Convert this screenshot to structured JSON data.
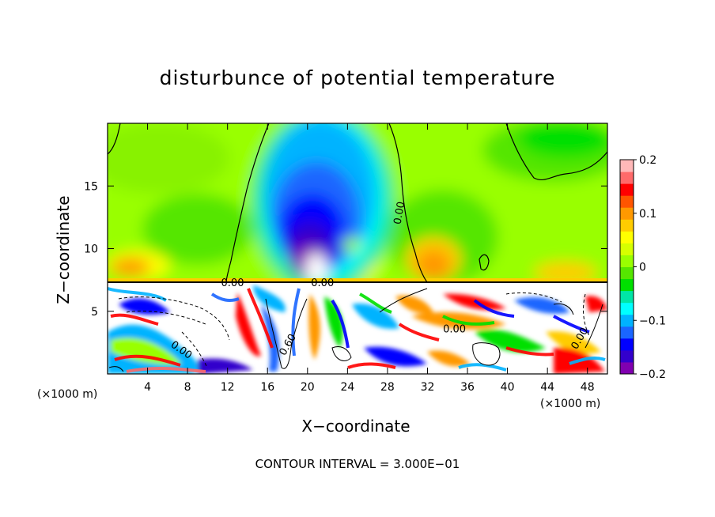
{
  "chart_data": {
    "type": "heatmap",
    "title": "disturbunce of potential temperature",
    "xlabel": "X−coordinate",
    "ylabel": "Z−coordinate",
    "x_unit_left": "(×1000 m)",
    "x_unit_right": "(×1000 m)",
    "footer": "CONTOUR INTERVAL = 3.000E−01",
    "xlim": [
      0,
      50
    ],
    "ylim": [
      0,
      20
    ],
    "x_ticks": [
      4,
      8,
      12,
      16,
      20,
      24,
      28,
      32,
      36,
      40,
      44,
      48
    ],
    "y_ticks": [
      5,
      10,
      15
    ],
    "colorbar": {
      "range": [
        -0.2,
        0.2
      ],
      "tick_values": [
        0.2,
        0.1,
        0,
        -0.1,
        -0.2
      ],
      "tick_labels": [
        "0.2",
        "0.1",
        "0",
        "−0.1",
        "−0.2"
      ],
      "colors": [
        "#8000b0",
        "#3300cc",
        "#0000ff",
        "#1a66ff",
        "#00b3ff",
        "#00ffff",
        "#00e6a6",
        "#00e000",
        "#55e600",
        "#99ff00",
        "#d6ff00",
        "#ffff00",
        "#ffcc00",
        "#ff9900",
        "#ff5500",
        "#ff0000",
        "#ff6a6a",
        "#ffb8b8"
      ]
    },
    "contour_labels": [
      {
        "text": "0.00",
        "x": 29.5,
        "y": 12.8,
        "angle": -80
      },
      {
        "text": "0.00",
        "x": 34.7,
        "y": 3.3,
        "angle": 0
      },
      {
        "text": "0.00",
        "x": 7.2,
        "y": 1.7,
        "angle": 35
      },
      {
        "text": "0.60",
        "x": 18.3,
        "y": 2.2,
        "angle": -60
      },
      {
        "text": "0.00",
        "x": 12.5,
        "y": 7.0,
        "angle": 0
      },
      {
        "text": "0.00",
        "x": 21.5,
        "y": 7.0,
        "angle": 0
      },
      {
        "text": "0.00",
        "x": 47.5,
        "y": 2.7,
        "angle": -60
      }
    ],
    "grid": false,
    "legend_placement": "right"
  }
}
